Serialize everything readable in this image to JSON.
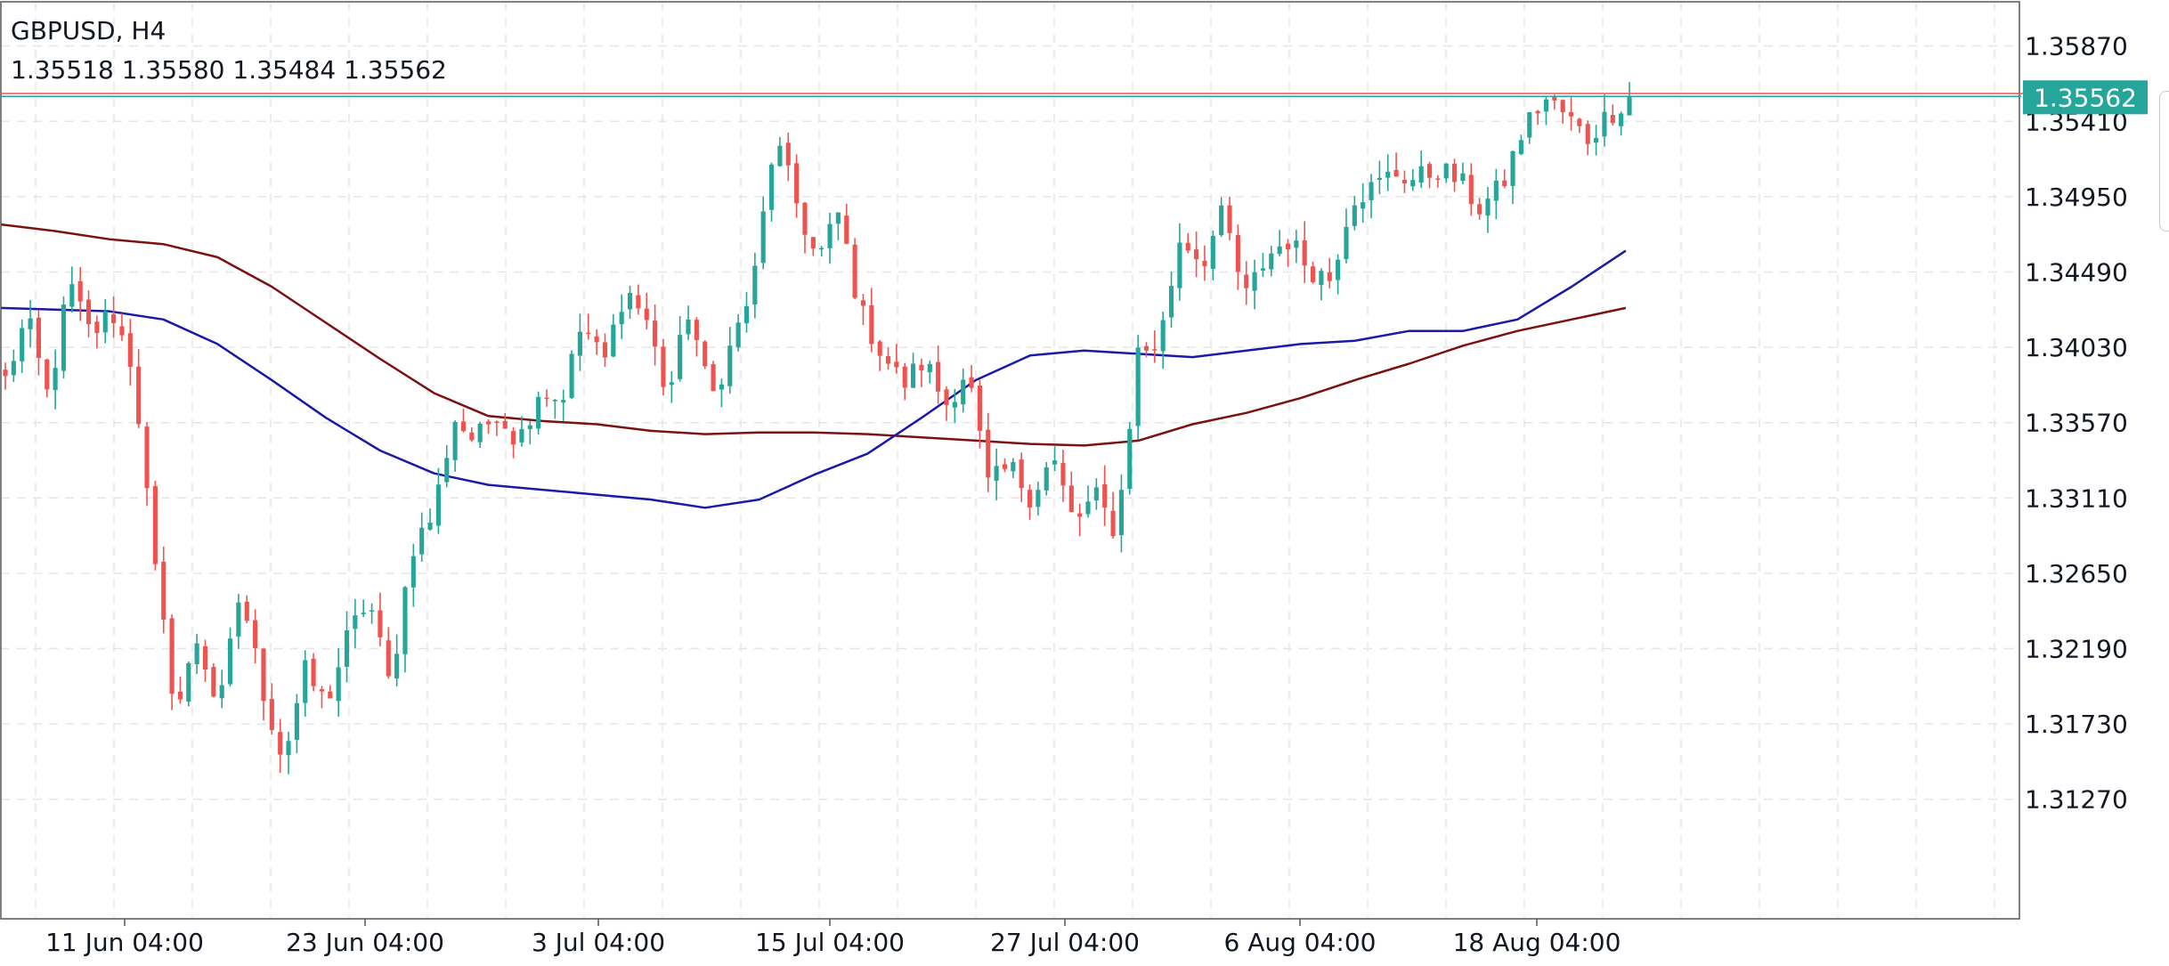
{
  "header": {
    "symbol_timeframe": "GBPUSD, H4",
    "ohlc": "1.35518 1.35580 1.35484 1.35562"
  },
  "colors": {
    "bull": "#26a69a",
    "bear": "#ef5350",
    "ma_fast": "#1a1aa8",
    "ma_slow": "#7b1111",
    "grid": "#e6e6e6",
    "axis_text": "#131722",
    "price_label_bg": "#26a69a",
    "price_label_text": "#ffffff"
  },
  "chart_data": {
    "type": "candlestick",
    "title": "GBPUSD, H4",
    "y_ticks": [
      "1.35870",
      "1.35410",
      "1.34950",
      "1.34490",
      "1.34030",
      "1.33570",
      "1.33110",
      "1.32650",
      "1.32190",
      "1.31730",
      "1.31270"
    ],
    "x_ticks": [
      "11 Jun 04:00",
      "23 Jun 04:00",
      "3 Jul 04:00",
      "15 Jul 04:00",
      "27 Jul 04:00",
      "6 Aug 04:00",
      "18 Aug 04:00"
    ],
    "ylim": [
      1.3054,
      1.3614
    ],
    "grid": true,
    "last_price": 1.35562,
    "last_price_label": "1.35562",
    "reference_line": 1.3558,
    "waypoints": [
      1.3383,
      1.3421,
      1.3372,
      1.3442,
      1.341,
      1.3425,
      1.339,
      1.3266,
      1.318,
      1.3226,
      1.318,
      1.3255,
      1.3196,
      1.3151,
      1.3205,
      1.3185,
      1.3225,
      1.325,
      1.3195,
      1.328,
      1.33,
      1.336,
      1.3345,
      1.3365,
      1.3345,
      1.3378,
      1.337,
      1.3418,
      1.3392,
      1.344,
      1.342,
      1.3372,
      1.3427,
      1.337,
      1.3405,
      1.3441,
      1.3531,
      1.3492,
      1.3455,
      1.3485,
      1.3425,
      1.34,
      1.338,
      1.3395,
      1.3368,
      1.339,
      1.3318,
      1.333,
      1.3312,
      1.3336,
      1.3295,
      1.3312,
      1.329,
      1.34,
      1.3405,
      1.3472,
      1.3455,
      1.3485,
      1.3432,
      1.3458,
      1.3469,
      1.3452,
      1.3445,
      1.3495,
      1.35,
      1.351,
      1.3505,
      1.3512,
      1.3505,
      1.3488,
      1.35,
      1.3535,
      1.3555,
      1.3545,
      1.353,
      1.3545,
      1.3556
    ],
    "ma_fast": {
      "x_range": [
        0,
        0.805
      ],
      "values": [
        1.3427,
        1.3426,
        1.3425,
        1.342,
        1.3405,
        1.3383,
        1.336,
        1.334,
        1.3326,
        1.3319,
        1.3316,
        1.3313,
        1.331,
        1.3305,
        1.331,
        1.3325,
        1.3338,
        1.336,
        1.3383,
        1.3398,
        1.3401,
        1.3399,
        1.3397,
        1.3401,
        1.3405,
        1.3407,
        1.3413,
        1.3413,
        1.342,
        1.344,
        1.3462
      ]
    },
    "ma_slow": {
      "x_range": [
        0,
        0.805
      ],
      "values": [
        1.3478,
        1.3474,
        1.3469,
        1.3466,
        1.3458,
        1.344,
        1.3418,
        1.3396,
        1.3375,
        1.3361,
        1.3358,
        1.3356,
        1.3352,
        1.335,
        1.3351,
        1.3351,
        1.335,
        1.3348,
        1.3346,
        1.3344,
        1.3343,
        1.3346,
        1.3356,
        1.3363,
        1.3372,
        1.3383,
        1.3393,
        1.3404,
        1.3413,
        1.342,
        1.3427
      ]
    }
  }
}
